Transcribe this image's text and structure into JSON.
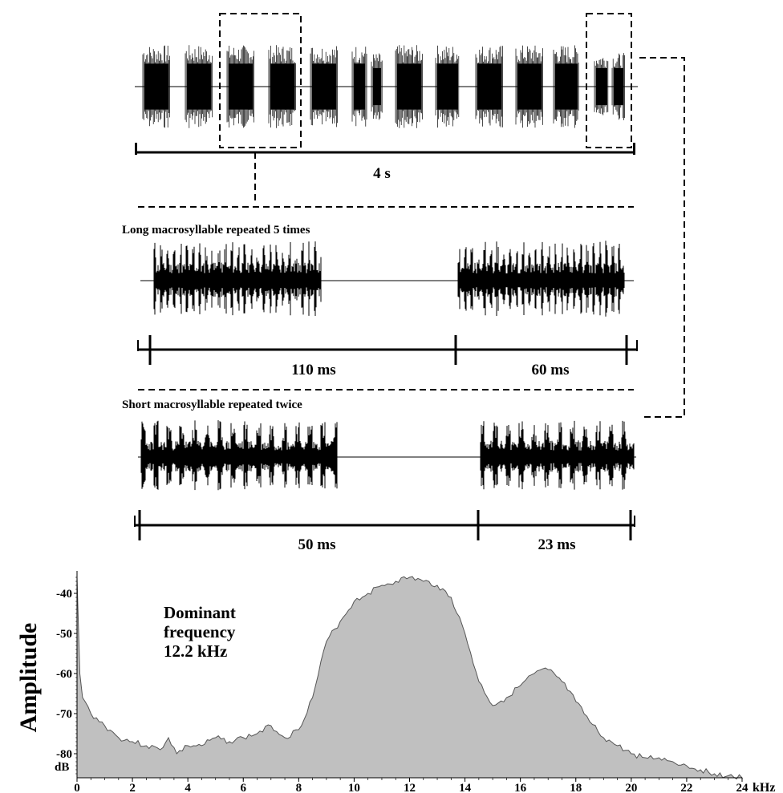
{
  "top_panel": {
    "duration_label": "4 s",
    "burst_count": 14
  },
  "long_panel": {
    "title": "Long macrosyllable repeated 5 times",
    "interval_label": "110 ms",
    "syllable_label": "60 ms"
  },
  "short_panel": {
    "title": "Short macrosyllable repeated twice",
    "interval_label": "50 ms",
    "syllable_label": "23 ms"
  },
  "spectrum": {
    "annotation_lines": [
      "Dominant",
      "frequency",
      "12.2 kHz"
    ],
    "ylabel": "Amplitude",
    "yunit": "dB",
    "xunit": "kHz",
    "fill_color": "#c0c0c0"
  },
  "chart_data": {
    "type": "area",
    "xlabel": "kHz",
    "ylabel": "Amplitude",
    "x_ticks": [
      0,
      2,
      4,
      6,
      8,
      10,
      12,
      14,
      16,
      18,
      20,
      22,
      24
    ],
    "y_ticks": [
      -40,
      -50,
      -60,
      -70,
      -80
    ],
    "xlim": [
      0,
      24
    ],
    "ylim": [
      -86,
      -35
    ],
    "x": [
      0,
      0.1,
      0.2,
      0.5,
      1,
      1.5,
      2,
      2.5,
      3,
      3.3,
      3.6,
      4,
      4.5,
      5,
      5.5,
      6,
      6.5,
      7,
      7.5,
      8,
      8.5,
      9,
      9.5,
      10,
      10.5,
      11,
      11.5,
      12,
      12.5,
      13,
      13.5,
      14,
      14.5,
      15,
      15.5,
      16,
      16.5,
      17,
      17.5,
      18,
      18.5,
      19,
      19.5,
      20,
      20.5,
      21,
      21.5,
      22,
      22.5,
      23,
      23.5,
      24
    ],
    "y": [
      -36,
      -60,
      -66,
      -70,
      -73,
      -76,
      -77,
      -78,
      -79,
      -76,
      -80,
      -78,
      -78,
      -76,
      -77,
      -76,
      -75,
      -73,
      -76,
      -74,
      -66,
      -52,
      -47,
      -42,
      -40,
      -38,
      -37,
      -36,
      -37,
      -38,
      -41,
      -50,
      -62,
      -68,
      -66,
      -63,
      -60,
      -59,
      -62,
      -67,
      -72,
      -76,
      -78,
      -80,
      -81,
      -81,
      -82,
      -83,
      -84,
      -85,
      -85.5,
      -86
    ]
  }
}
